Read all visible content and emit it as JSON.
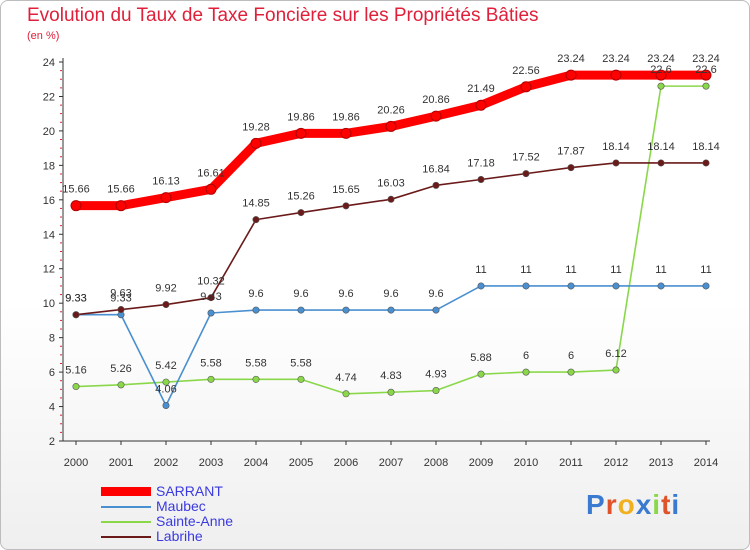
{
  "header": {
    "title": "Evolution du Taux de Taxe Foncière sur les Propriétés Bâties",
    "subtitle": "(en %)"
  },
  "chart_data": {
    "type": "line",
    "title": "Evolution du Taux de Taxe Foncière sur les Propriétés Bâties",
    "ylabel": "(en %)",
    "xlabel": "",
    "categories": [
      "2000",
      "2001",
      "2002",
      "2003",
      "2004",
      "2005",
      "2006",
      "2007",
      "2008",
      "2009",
      "2010",
      "2011",
      "2012",
      "2013",
      "2014"
    ],
    "ylim": [
      2,
      24
    ],
    "yticks": [
      2,
      4,
      6,
      8,
      10,
      12,
      14,
      16,
      18,
      20,
      22,
      24
    ],
    "grid": false,
    "legend_position": "bottom-left",
    "series": [
      {
        "name": "SARRANT",
        "color": "#ff0000",
        "values": [
          15.66,
          15.66,
          16.13,
          16.61,
          19.28,
          19.86,
          19.86,
          20.26,
          20.86,
          21.49,
          22.56,
          23.24,
          23.24,
          23.24,
          23.24
        ],
        "labels": [
          "15.66",
          "15.66",
          "16.13",
          "16.61",
          "19.28",
          "19.86",
          "19.86",
          "20.26",
          "20.86",
          "21.49",
          "22.56",
          "23.24",
          "23.24",
          "23.24",
          "23.24"
        ]
      },
      {
        "name": "Maubec",
        "color": "#4a8fd0",
        "values": [
          9.33,
          9.33,
          4.06,
          9.43,
          9.6,
          9.6,
          9.6,
          9.6,
          9.6,
          11,
          11,
          11,
          11,
          11,
          11
        ],
        "labels": [
          "9.33",
          "9.33",
          "4.06",
          "9.43",
          "9.6",
          "9.6",
          "9.6",
          "9.6",
          "9.6",
          "11",
          "11",
          "11",
          "11",
          "11",
          "11"
        ]
      },
      {
        "name": "Sainte-Anne",
        "color": "#8ad84a",
        "values": [
          5.16,
          5.26,
          5.42,
          5.58,
          5.58,
          5.58,
          4.74,
          4.83,
          4.93,
          5.88,
          6,
          6,
          6.12,
          22.6,
          22.6
        ],
        "labels": [
          "5.16",
          "5.26",
          "5.42",
          "5.58",
          "5.58",
          "5.58",
          "4.74",
          "4.83",
          "4.93",
          "5.88",
          "6",
          "6",
          "6.12",
          "22.6",
          "22.6"
        ]
      },
      {
        "name": "Labrihe",
        "color": "#6b1a1a",
        "values": [
          9.33,
          9.63,
          9.92,
          10.32,
          14.85,
          15.26,
          15.65,
          16.03,
          16.84,
          17.18,
          17.52,
          17.87,
          18.14,
          18.14,
          18.14
        ],
        "labels": [
          "9.33",
          "9.63",
          "9.92",
          "10.32",
          "14.85",
          "15.26",
          "15.65",
          "16.03",
          "16.84",
          "17.18",
          "17.52",
          "17.87",
          "18.14",
          "18.14",
          "18.14"
        ]
      }
    ]
  },
  "legend": {
    "items": [
      {
        "label": "SARRANT",
        "color": "#ff0000"
      },
      {
        "label": "Maubec",
        "color": "#4a8fd0"
      },
      {
        "label": "Sainte-Anne",
        "color": "#8ad84a"
      },
      {
        "label": "Labrihe",
        "color": "#6b1a1a"
      }
    ]
  },
  "logo": {
    "text": "Proxiti",
    "letter_colors": [
      "#3a7ad0",
      "#e0532a",
      "#f0b020",
      "#3a7ad0",
      "#8ad84a",
      "#e0532a",
      "#3a7ad0"
    ]
  }
}
